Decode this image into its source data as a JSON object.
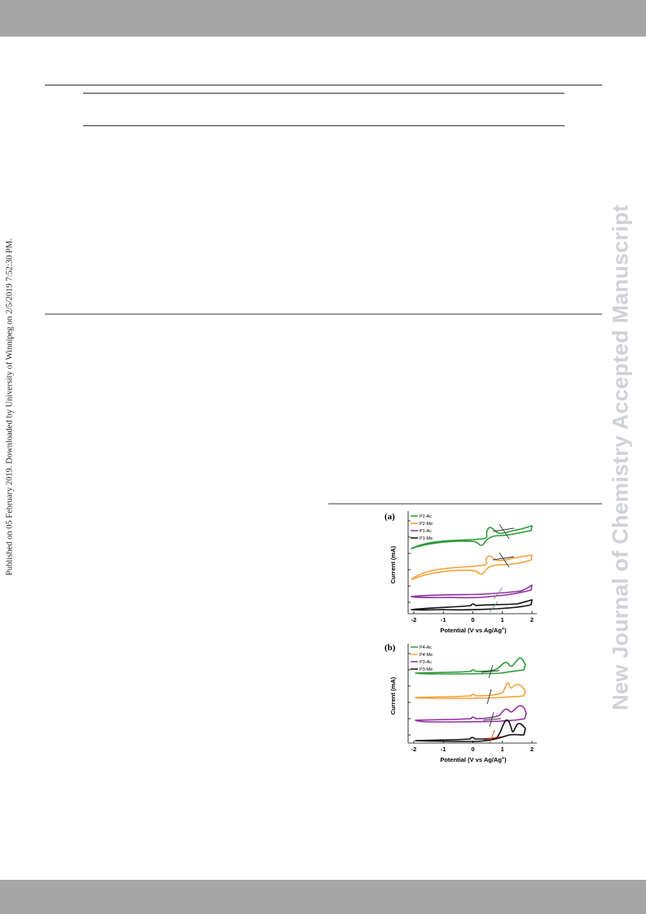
{
  "sidebar": {
    "published_note": "Published on 05 February 2019. Downloaded by University of Winnipeg on 2/5/2019 7:52:30 PM.",
    "journal_watermark": "New Journal of Chemistry Accepted Manuscript"
  },
  "colors": {
    "band": "#a6a6a6",
    "watermark": "#d0d2d8",
    "green": "#2e9a3a",
    "orange": "#f5a13a",
    "purple": "#8e2fa0",
    "black": "#111111",
    "red_marker": "#e23b2e"
  },
  "figure": {
    "panel_a": {
      "label": "(a)",
      "ylabel": "Current (mA)",
      "xlabel": "Potential (V vs Ag/Ag",
      "xlabel_sup": "+",
      "xlabel_end": ")",
      "legend": [
        "P2-Ac",
        "P2-Me",
        "P1-Ac",
        "P1-Me"
      ]
    },
    "panel_b": {
      "label": "(b)",
      "ylabel": "Current (mA)",
      "xlabel": "Potential (V vs Ag/Ag",
      "xlabel_sup": "+",
      "xlabel_end": ")",
      "legend": [
        "P4-Ac",
        "P4-Me",
        "P3-Ac",
        "P3-Me"
      ]
    }
  },
  "chart_data": [
    {
      "type": "line",
      "panel": "(a)",
      "xlabel": "Potential (V vs Ag/Ag+)",
      "ylabel": "Current (mA)",
      "xlim": [
        -2,
        2
      ],
      "xticks": [
        "-2",
        "-1",
        "0",
        "1",
        "2"
      ],
      "series": [
        {
          "name": "P2-Ac",
          "color": "#2e9a3a",
          "onset_v": 1.1
        },
        {
          "name": "P2-Me",
          "color": "#f5a13a",
          "onset_v": 1.1
        },
        {
          "name": "P1-Ac",
          "color": "#8e2fa0",
          "onset_v": 0.95
        },
        {
          "name": "P1-Me",
          "color": "#111111",
          "onset_v": 0.85
        }
      ]
    },
    {
      "type": "line",
      "panel": "(b)",
      "xlabel": "Potential (V vs Ag/Ag+)",
      "ylabel": "Current (mA)",
      "xlim": [
        -2,
        2
      ],
      "xticks": [
        "-2",
        "-1",
        "0",
        "1",
        "2"
      ],
      "series": [
        {
          "name": "P4-Ac",
          "color": "#2e9a3a",
          "onset_v": 0.65
        },
        {
          "name": "P4-Me",
          "color": "#f5a13a",
          "onset_v": 0.6
        },
        {
          "name": "P3-Ac",
          "color": "#8e2fa0",
          "onset_v": 0.7
        },
        {
          "name": "P3-Me",
          "color": "#111111",
          "onset_v": 0.75
        }
      ]
    }
  ]
}
